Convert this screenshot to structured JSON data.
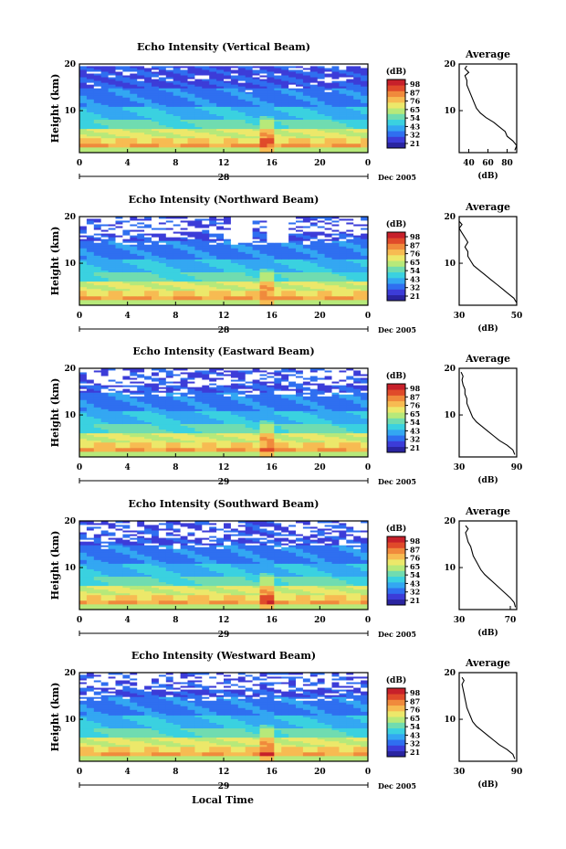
{
  "panels": [
    {
      "title": "Echo Intensity (Vertical Beam)",
      "profile_xlim": [
        30,
        90
      ],
      "profile_xticks": [
        "40",
        "60",
        "80"
      ],
      "day_label": "28",
      "profile": [
        [
          88,
          1.5
        ],
        [
          90,
          2.5
        ],
        [
          86,
          3.5
        ],
        [
          80,
          4.5
        ],
        [
          78,
          5.5
        ],
        [
          72,
          6.5
        ],
        [
          66,
          7.5
        ],
        [
          58,
          8.5
        ],
        [
          52,
          9.5
        ],
        [
          48,
          10.5
        ],
        [
          46,
          11.5
        ],
        [
          44,
          12.5
        ],
        [
          42,
          13.5
        ],
        [
          40,
          14.5
        ],
        [
          38,
          15.5
        ],
        [
          38,
          16.5
        ],
        [
          36,
          17.5
        ],
        [
          40,
          18.2
        ],
        [
          36,
          19.0
        ],
        [
          38,
          19.6
        ]
      ]
    },
    {
      "title": "Echo Intensity (Northward Beam)",
      "profile_xlim": [
        30,
        50
      ],
      "profile_xticks": [
        "30",
        "50"
      ],
      "day_label": "28",
      "profile": [
        [
          50,
          1.5
        ],
        [
          49,
          2.5
        ],
        [
          47,
          3.5
        ],
        [
          45,
          4.5
        ],
        [
          43,
          5.5
        ],
        [
          41,
          6.5
        ],
        [
          39,
          7.5
        ],
        [
          37,
          8.5
        ],
        [
          35,
          9.5
        ],
        [
          34,
          10.5
        ],
        [
          33,
          11.5
        ],
        [
          33,
          12.5
        ],
        [
          32,
          13.5
        ],
        [
          33,
          14.5
        ],
        [
          32,
          15.5
        ],
        [
          31,
          16.5
        ],
        [
          30,
          17.5
        ],
        [
          31,
          18.3
        ],
        [
          30,
          19.0
        ]
      ]
    },
    {
      "title": "Echo Intensity (Eastward Beam)",
      "profile_xlim": [
        30,
        90
      ],
      "profile_xticks": [
        "30",
        "90"
      ],
      "day_label": "29",
      "profile": [
        [
          88,
          1.5
        ],
        [
          86,
          2.5
        ],
        [
          80,
          3.5
        ],
        [
          72,
          4.5
        ],
        [
          66,
          5.5
        ],
        [
          60,
          6.5
        ],
        [
          54,
          7.5
        ],
        [
          48,
          8.5
        ],
        [
          44,
          9.5
        ],
        [
          42,
          10.5
        ],
        [
          40,
          11.5
        ],
        [
          38,
          12.5
        ],
        [
          38,
          13.5
        ],
        [
          36,
          14.5
        ],
        [
          36,
          15.5
        ],
        [
          34,
          16.5
        ],
        [
          33,
          17.5
        ],
        [
          34,
          18.3
        ],
        [
          32,
          19.2
        ]
      ]
    },
    {
      "title": "Echo Intensity (Southward Beam)",
      "profile_xlim": [
        30,
        75
      ],
      "profile_xticks": [
        "30",
        "70"
      ],
      "day_label": "29",
      "profile": [
        [
          74,
          1.5
        ],
        [
          73,
          2.5
        ],
        [
          70,
          3.5
        ],
        [
          66,
          4.5
        ],
        [
          62,
          5.5
        ],
        [
          58,
          6.5
        ],
        [
          54,
          7.5
        ],
        [
          50,
          8.5
        ],
        [
          47,
          9.5
        ],
        [
          45,
          10.5
        ],
        [
          43,
          11.5
        ],
        [
          41,
          12.5
        ],
        [
          40,
          13.5
        ],
        [
          39,
          14.5
        ],
        [
          37,
          15.5
        ],
        [
          36,
          16.5
        ],
        [
          35,
          17.5
        ],
        [
          37,
          18.3
        ],
        [
          35,
          19.0
        ]
      ]
    },
    {
      "title": "Echo Intensity (Westward Beam)",
      "profile_xlim": [
        30,
        90
      ],
      "profile_xticks": [
        "30",
        "90"
      ],
      "day_label": "29",
      "profile": [
        [
          88,
          1.5
        ],
        [
          86,
          2.5
        ],
        [
          80,
          3.5
        ],
        [
          72,
          4.5
        ],
        [
          66,
          5.5
        ],
        [
          60,
          6.5
        ],
        [
          54,
          7.5
        ],
        [
          48,
          8.5
        ],
        [
          44,
          9.5
        ],
        [
          42,
          10.5
        ],
        [
          40,
          11.5
        ],
        [
          38,
          12.5
        ],
        [
          37,
          13.5
        ],
        [
          36,
          14.5
        ],
        [
          35,
          15.5
        ],
        [
          34,
          16.5
        ],
        [
          33,
          17.5
        ],
        [
          35,
          18.3
        ],
        [
          33,
          19.0
        ]
      ]
    }
  ],
  "shared": {
    "ylabel": "Height (km)",
    "yticks": [
      "20",
      "10"
    ],
    "xticks": [
      "0",
      "4",
      "8",
      "12",
      "16",
      "20",
      "0"
    ],
    "date_label": "Dec 2005",
    "colorbar_unit": "(dB)",
    "colorbar_ticks": [
      "98",
      "87",
      "76",
      "65",
      "54",
      "43",
      "32",
      "21"
    ],
    "profile_title": "Average",
    "profile_xlabel": "(dB)",
    "bottom_xlabel": "Local Time"
  },
  "colors": {
    "scale": [
      "#2a24a0",
      "#3c3cd8",
      "#2f6ff0",
      "#33a7f2",
      "#3ad1e0",
      "#70dcb0",
      "#b7e97a",
      "#ece86a",
      "#f7bb52",
      "#f08a3c",
      "#e04a2a",
      "#c7202a"
    ]
  },
  "chart_data": [
    {
      "type": "heatmap",
      "title": "Echo Intensity (Vertical Beam)",
      "xlabel": "",
      "ylabel": "Height (km)",
      "x_range_hours": [
        0,
        24
      ],
      "ylim": [
        1,
        20
      ],
      "colorbar": {
        "unit": "(dB)",
        "range": [
          21,
          98
        ],
        "ticks": [
          98,
          87,
          76,
          65,
          54,
          43,
          32,
          21
        ]
      },
      "side_profile": {
        "title": "Average",
        "xlabel": "(dB)",
        "xlim": [
          30,
          90
        ]
      }
    },
    {
      "type": "heatmap",
      "title": "Echo Intensity (Northward Beam)",
      "xlabel": "",
      "ylabel": "Height (km)",
      "x_range_hours": [
        0,
        24
      ],
      "ylim": [
        1,
        20
      ],
      "colorbar": {
        "unit": "(dB)",
        "range": [
          21,
          98
        ],
        "ticks": [
          98,
          87,
          76,
          65,
          54,
          43,
          32,
          21
        ]
      },
      "side_profile": {
        "title": "Average",
        "xlabel": "(dB)",
        "xlim": [
          30,
          50
        ]
      }
    },
    {
      "type": "heatmap",
      "title": "Echo Intensity (Eastward Beam)",
      "xlabel": "",
      "ylabel": "Height (km)",
      "x_range_hours": [
        0,
        24
      ],
      "ylim": [
        1,
        20
      ],
      "colorbar": {
        "unit": "(dB)",
        "range": [
          21,
          98
        ],
        "ticks": [
          98,
          87,
          76,
          65,
          54,
          43,
          32,
          21
        ]
      },
      "side_profile": {
        "title": "Average",
        "xlabel": "(dB)",
        "xlim": [
          30,
          90
        ]
      }
    },
    {
      "type": "heatmap",
      "title": "Echo Intensity (Southward Beam)",
      "xlabel": "",
      "ylabel": "Height (km)",
      "x_range_hours": [
        0,
        24
      ],
      "ylim": [
        1,
        20
      ],
      "colorbar": {
        "unit": "(dB)",
        "range": [
          21,
          98
        ],
        "ticks": [
          98,
          87,
          76,
          65,
          54,
          43,
          32,
          21
        ]
      },
      "side_profile": {
        "title": "Average",
        "xlabel": "(dB)",
        "xlim": [
          30,
          75
        ]
      }
    },
    {
      "type": "heatmap",
      "title": "Echo Intensity (Westward Beam)",
      "xlabel": "Local Time",
      "ylabel": "Height (km)",
      "x_range_hours": [
        0,
        24
      ],
      "ylim": [
        1,
        20
      ],
      "colorbar": {
        "unit": "(dB)",
        "range": [
          21,
          98
        ],
        "ticks": [
          98,
          87,
          76,
          65,
          54,
          43,
          32,
          21
        ]
      },
      "side_profile": {
        "title": "Average",
        "xlabel": "(dB)",
        "xlim": [
          30,
          90
        ]
      }
    }
  ]
}
